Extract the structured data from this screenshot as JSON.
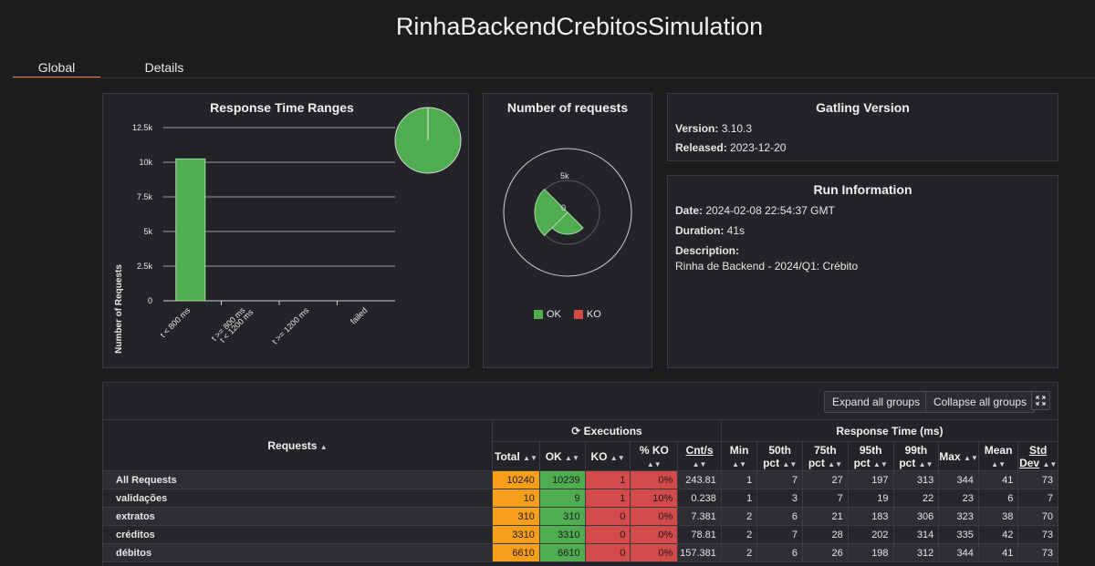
{
  "page": {
    "title": "RinhaBackendCrebitosSimulation"
  },
  "tabs": [
    {
      "label": "Global"
    },
    {
      "label": "Details"
    }
  ],
  "response_time_ranges": {
    "title": "Response Time Ranges",
    "ylabel": "Number of Requests",
    "y_ticks": [
      "12.5k",
      "10k",
      "7.5k",
      "5k",
      "2.5k",
      "0"
    ],
    "x_labels": [
      "t < 800 ms",
      "t >= 800 ms",
      "t < 1200 ms",
      "t >= 1200 ms",
      "failed"
    ],
    "bar_color": "#4fad4f"
  },
  "number_of_requests": {
    "title": "Number of requests",
    "radial_ticks": [
      "5k",
      "0"
    ],
    "legend": [
      {
        "label": "OK",
        "color": "#4fad4f"
      },
      {
        "label": "KO",
        "color": "#d34a4a"
      }
    ]
  },
  "chart_data": [
    {
      "type": "bar",
      "title": "Response Time Ranges",
      "categories": [
        "t < 800 ms",
        "t >= 800 ms t < 1200 ms",
        "t >= 1200 ms",
        "failed"
      ],
      "values": [
        10239,
        0,
        0,
        1
      ],
      "ylabel": "Number of Requests",
      "ylim": [
        0,
        12500
      ]
    },
    {
      "type": "pie",
      "categories": [
        "t < 800 ms",
        "failed"
      ],
      "values": [
        10239,
        1
      ]
    }
  ],
  "gatling_version": {
    "title": "Gatling Version",
    "version_label": "Version:",
    "version": "3.10.3",
    "released_label": "Released:",
    "released": "2023-12-20"
  },
  "run_information": {
    "title": "Run Information",
    "date_label": "Date:",
    "date": "2024-02-08 22:54:37 GMT",
    "duration_label": "Duration:",
    "duration": "41s",
    "description_label": "Description:",
    "description": "Rinha de Backend - 2024/Q1: Crébito"
  },
  "toolbar": {
    "expand_label": "Expand all groups",
    "collapse_label": "Collapse all groups",
    "fullscreen_icon": "expand-arrows-icon"
  },
  "stats_table": {
    "requests_header": "Requests",
    "executions_header": "Executions",
    "response_time_header": "Response Time (ms)",
    "columns": {
      "total": "Total",
      "ok": "OK",
      "ko": "KO",
      "pct_ko": "% KO",
      "cnt_s": "Cnt/s",
      "min": "Min",
      "p50_a": "50th",
      "p50_b": "pct",
      "p75_a": "75th",
      "p75_b": "pct",
      "p95_a": "95th",
      "p95_b": "pct",
      "p99_a": "99th",
      "p99_b": "pct",
      "max": "Max",
      "mean": "Mean",
      "std_a": "Std",
      "std_b": "Dev"
    },
    "rows": [
      {
        "name": "All Requests",
        "total": "10240",
        "ok": "10239",
        "ko": "1",
        "pct_ko": "0%",
        "cnt_s": "243.81",
        "min": "1",
        "p50": "7",
        "p75": "27",
        "p95": "197",
        "p99": "313",
        "max": "344",
        "mean": "41",
        "std": "73"
      },
      {
        "name": "validações",
        "total": "10",
        "ok": "9",
        "ko": "1",
        "pct_ko": "10%",
        "cnt_s": "0.238",
        "min": "1",
        "p50": "3",
        "p75": "7",
        "p95": "19",
        "p99": "22",
        "max": "23",
        "mean": "6",
        "std": "7"
      },
      {
        "name": "extratos",
        "total": "310",
        "ok": "310",
        "ko": "0",
        "pct_ko": "0%",
        "cnt_s": "7.381",
        "min": "2",
        "p50": "6",
        "p75": "21",
        "p95": "183",
        "p99": "306",
        "max": "323",
        "mean": "38",
        "std": "70"
      },
      {
        "name": "créditos",
        "total": "3310",
        "ok": "3310",
        "ko": "0",
        "pct_ko": "0%",
        "cnt_s": "78.81",
        "min": "2",
        "p50": "7",
        "p75": "28",
        "p95": "202",
        "p99": "314",
        "max": "335",
        "mean": "42",
        "std": "73"
      },
      {
        "name": "débitos",
        "total": "6610",
        "ok": "6610",
        "ko": "0",
        "pct_ko": "0%",
        "cnt_s": "157.381",
        "min": "2",
        "p50": "6",
        "p75": "26",
        "p95": "198",
        "p99": "312",
        "max": "344",
        "mean": "41",
        "std": "73"
      }
    ]
  }
}
